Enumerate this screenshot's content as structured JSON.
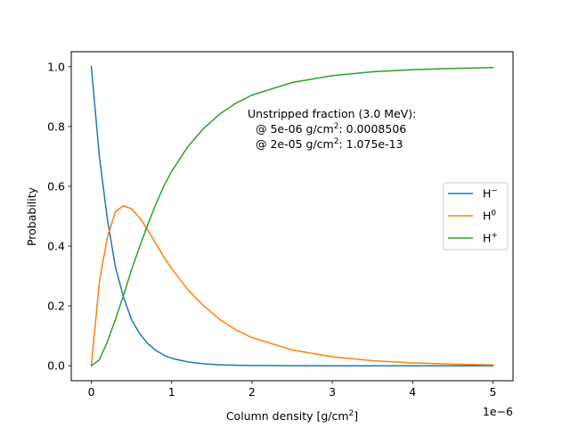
{
  "chart_data": {
    "type": "line",
    "title": "",
    "xlabel": "Column density [g/cm²]",
    "ylabel": "Probability",
    "x_offset_text": "1e−6",
    "xlim": [
      -2.5e-07,
      5.25e-06
    ],
    "ylim": [
      -0.05,
      1.05
    ],
    "x_ticks": [
      0,
      1e-06,
      2e-06,
      3e-06,
      4e-06,
      5e-06
    ],
    "x_tick_labels": [
      "0",
      "1",
      "2",
      "3",
      "4",
      "5"
    ],
    "y_ticks": [
      0.0,
      0.2,
      0.4,
      0.6,
      0.8,
      1.0
    ],
    "y_tick_labels": [
      "0.0",
      "0.2",
      "0.4",
      "0.6",
      "0.8",
      "1.0"
    ],
    "grid": false,
    "legend_position": "center-right",
    "x": [
      0,
      1e-07,
      2e-07,
      3e-07,
      4e-07,
      5e-07,
      6e-07,
      7e-07,
      8e-07,
      9e-07,
      1e-06,
      1.2e-06,
      1.4e-06,
      1.6e-06,
      1.8e-06,
      2e-06,
      2.5e-06,
      3e-06,
      3.5e-06,
      4e-06,
      4.5e-06,
      5e-06
    ],
    "series": [
      {
        "name": "H⁻",
        "color": "#1f77b4",
        "values": [
          1.0,
          0.7,
          0.49,
          0.33,
          0.23,
          0.155,
          0.108,
          0.075,
          0.052,
          0.036,
          0.025,
          0.013,
          0.0065,
          0.0033,
          0.0017,
          0.0009,
          0.0002,
          5e-05,
          1e-05,
          0.0,
          0.0,
          0.0
        ]
      },
      {
        "name": "H⁰",
        "color": "#ff7f0e",
        "values": [
          0.0,
          0.28,
          0.43,
          0.515,
          0.535,
          0.525,
          0.495,
          0.455,
          0.41,
          0.365,
          0.325,
          0.255,
          0.2,
          0.155,
          0.12,
          0.094,
          0.053,
          0.03,
          0.017,
          0.0095,
          0.0055,
          0.003
        ]
      },
      {
        "name": "H⁺",
        "color": "#2ca02c",
        "values": [
          0.0,
          0.02,
          0.08,
          0.155,
          0.235,
          0.32,
          0.397,
          0.47,
          0.538,
          0.599,
          0.65,
          0.732,
          0.794,
          0.842,
          0.878,
          0.905,
          0.947,
          0.97,
          0.983,
          0.99,
          0.994,
          0.997
        ]
      }
    ],
    "legend": [
      {
        "base": "H",
        "sup": "−"
      },
      {
        "base": "H",
        "sup": "0"
      },
      {
        "base": "H",
        "sup": "+"
      }
    ],
    "annotation": {
      "line1": "Unstripped fraction (3.0 MeV):",
      "line2_prefix": "@ 5e-06 g/cm",
      "line2_sup": "2",
      "line2_suffix": ": 0.0008506",
      "line3_prefix": "@ 2e-05 g/cm",
      "line3_sup": "2",
      "line3_suffix": ": 1.075e-13"
    },
    "xlabel_parts": {
      "prefix": "Column density [g/cm",
      "sup": "2",
      "suffix": "]"
    }
  }
}
